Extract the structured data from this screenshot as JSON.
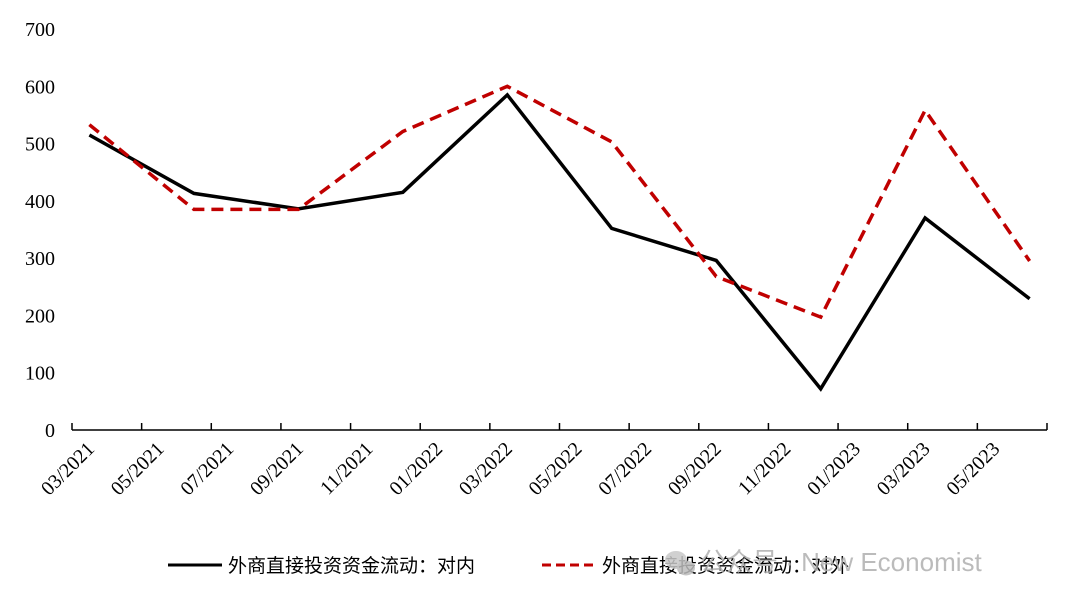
{
  "chart_data": {
    "type": "line",
    "x": [
      "03/2021",
      "04/2021",
      "05/2021",
      "06/2021",
      "07/2021",
      "08/2021",
      "09/2021",
      "10/2021",
      "11/2021",
      "12/2021",
      "01/2022",
      "02/2022",
      "03/2022",
      "04/2022",
      "05/2022",
      "06/2022",
      "07/2022",
      "08/2022",
      "09/2022",
      "10/2022",
      "11/2022",
      "12/2022",
      "01/2023",
      "02/2023",
      "03/2023",
      "04/2023",
      "05/2023",
      "06/2023"
    ],
    "tick_labels": [
      "03/2021",
      "05/2021",
      "07/2021",
      "09/2021",
      "11/2021",
      "01/2022",
      "03/2022",
      "05/2022",
      "07/2022",
      "09/2022",
      "11/2022",
      "01/2023",
      "03/2023",
      "05/2023"
    ],
    "y_ticks": [
      "0",
      "100",
      "200",
      "300",
      "400",
      "500",
      "600",
      "700"
    ],
    "ylim": [
      0,
      700
    ],
    "series": [
      {
        "name": "外商直接投资资金流动：对内",
        "color": "#000000",
        "style": "solid",
        "x": [
          "03/2021",
          "06/2021",
          "09/2021",
          "12/2021",
          "03/2022",
          "06/2022",
          "09/2022",
          "12/2022",
          "03/2023",
          "06/2023"
        ],
        "values": [
          515,
          413,
          386,
          415,
          585,
          352,
          296,
          72,
          370,
          229
        ]
      },
      {
        "name": "外商直接投资资金流动：对外",
        "color": "#c00000",
        "style": "dashed",
        "x": [
          "03/2021",
          "06/2021",
          "09/2021",
          "12/2021",
          "03/2022",
          "06/2022",
          "09/2022",
          "12/2022",
          "03/2023",
          "06/2023"
        ],
        "values": [
          533,
          385,
          385,
          521,
          600,
          503,
          268,
          197,
          558,
          295
        ]
      }
    ],
    "legend_position": "bottom",
    "grid": false
  },
  "watermark": {
    "text": "公众号 · New Economist",
    "icon": "wechat-icon"
  }
}
